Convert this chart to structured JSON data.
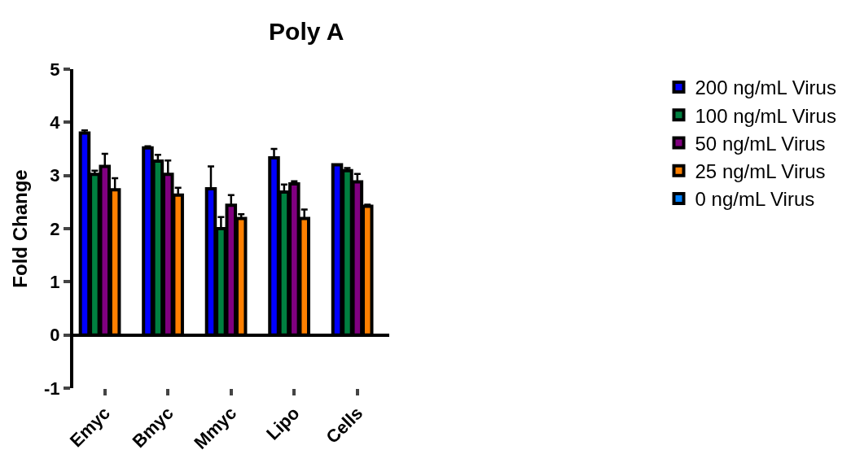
{
  "chart_data": {
    "type": "bar",
    "title": "Poly A",
    "ylabel": "Fold Change",
    "categories": [
      "Emyc",
      "Bmyc",
      "Mmyc",
      "Lipo",
      "Cells"
    ],
    "series": [
      {
        "name": "200 ng/mL Virus",
        "color": "#0000ff",
        "values": [
          3.8,
          3.52,
          2.75,
          3.33,
          3.2
        ],
        "errors": [
          [
            3.8,
            3.85
          ],
          [
            3.52,
            3.55
          ],
          [
            2.75,
            3.17
          ],
          [
            3.33,
            3.5
          ],
          null
        ]
      },
      {
        "name": "100 ng/mL Virus",
        "color": "#008040",
        "values": [
          3.02,
          3.27,
          2.0,
          2.69,
          3.09
        ],
        "errors": [
          [
            3.02,
            3.09
          ],
          [
            3.27,
            3.39
          ],
          [
            2.0,
            2.22
          ],
          [
            2.69,
            2.83
          ],
          [
            3.09,
            3.14
          ]
        ]
      },
      {
        "name": "50 ng/mL Virus",
        "color": "#800080",
        "values": [
          3.17,
          3.02,
          2.44,
          2.84,
          2.88
        ],
        "errors": [
          [
            3.17,
            3.41
          ],
          [
            3.02,
            3.28
          ],
          [
            2.44,
            2.63
          ],
          [
            2.84,
            2.89
          ],
          [
            2.88,
            3.03
          ]
        ]
      },
      {
        "name": "25 ng/mL Virus",
        "color": "#ff8000",
        "values": [
          2.73,
          2.63,
          2.19,
          2.19,
          2.42
        ],
        "errors": [
          [
            2.73,
            2.95
          ],
          [
            2.63,
            2.77
          ],
          [
            2.19,
            2.27
          ],
          [
            2.19,
            2.36
          ],
          [
            2.42,
            2.45
          ]
        ]
      },
      {
        "name": "0 ng/mL Virus",
        "color": "#0080ff",
        "values": [
          null,
          null,
          null,
          null,
          null
        ]
      }
    ],
    "ylim": [
      -1,
      5
    ],
    "yticks": [
      -1,
      0,
      1,
      2,
      3,
      4,
      5
    ],
    "legend": "right"
  }
}
